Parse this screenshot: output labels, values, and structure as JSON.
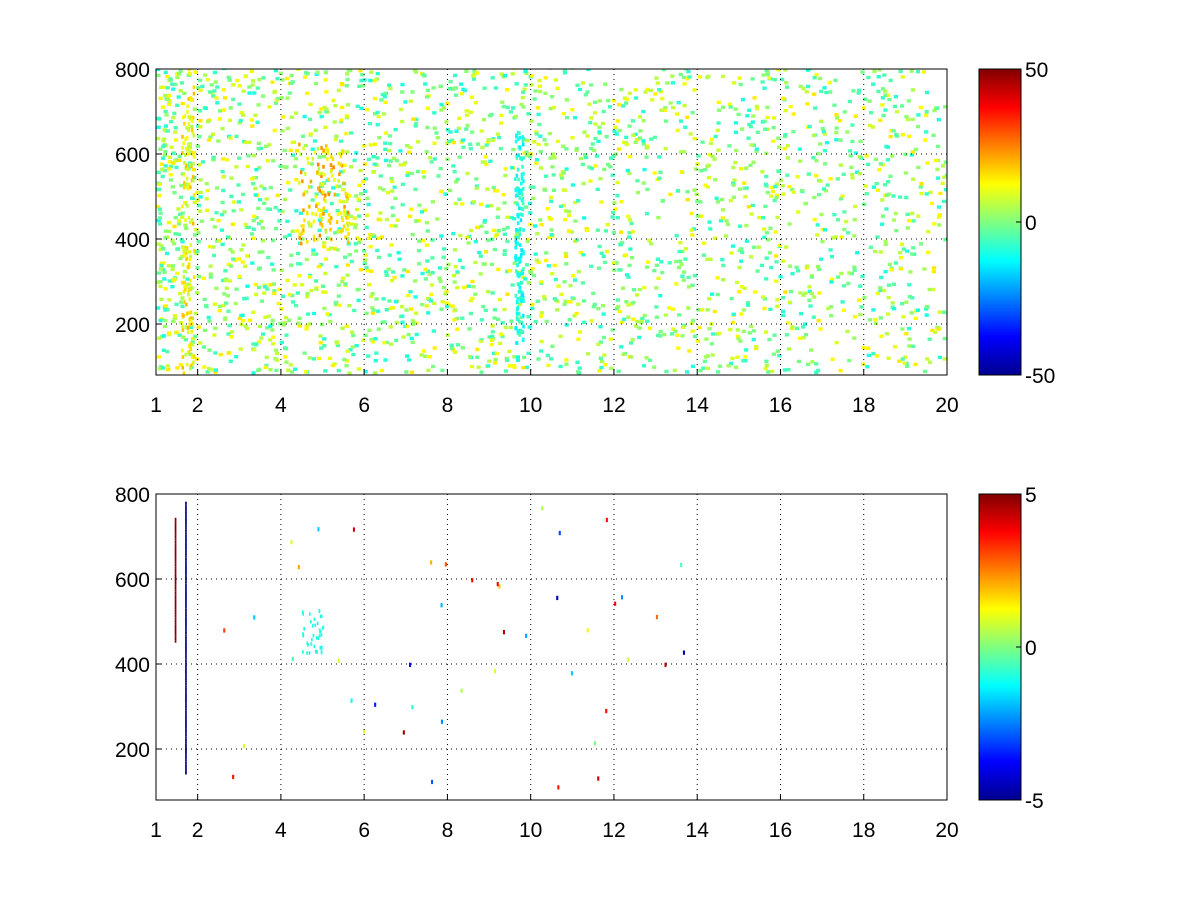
{
  "chart_data": [
    {
      "type": "heatmap",
      "title": "",
      "xlabel": "",
      "ylabel": "",
      "xlim": [
        1,
        20
      ],
      "ylim": [
        80,
        800
      ],
      "x_ticks": [
        "1",
        "2",
        "4",
        "6",
        "8",
        "10",
        "12",
        "14",
        "16",
        "18",
        "20"
      ],
      "y_ticks": [
        "200",
        "400",
        "600",
        "800"
      ],
      "grid": true,
      "colormap": "jet",
      "colorbar": {
        "range": [
          -50,
          50
        ],
        "ticks": [
          "50",
          "0",
          "-50"
        ]
      },
      "features": [
        {
          "label": "dense low-amplitude scatter over full y-range, densest near x 1-6, sparser toward x 20",
          "x_range": [
            1,
            20
          ],
          "y_range": [
            80,
            800
          ],
          "value_range": [
            -10,
            15
          ]
        },
        {
          "label": "strong positive vertical streak",
          "x_range": [
            1.6,
            1.9
          ],
          "y_range": [
            80,
            800
          ],
          "value_range": [
            5,
            20
          ]
        },
        {
          "label": "positive blob",
          "x_range": [
            4.4,
            5.6
          ],
          "y_range": [
            380,
            620
          ],
          "value_range": [
            5,
            25
          ]
        },
        {
          "label": "negative streak",
          "x_range": [
            9.6,
            9.8
          ],
          "y_range": [
            150,
            650
          ],
          "value_range": [
            -15,
            -5
          ]
        }
      ]
    },
    {
      "type": "heatmap",
      "title": "",
      "xlabel": "",
      "ylabel": "",
      "xlim": [
        1,
        20
      ],
      "ylim": [
        80,
        800
      ],
      "x_ticks": [
        "1",
        "2",
        "4",
        "6",
        "8",
        "10",
        "12",
        "14",
        "16",
        "18",
        "20"
      ],
      "y_ticks": [
        "200",
        "400",
        "600",
        "800"
      ],
      "grid": true,
      "colormap": "jet",
      "colorbar": {
        "range": [
          -5,
          5
        ],
        "ticks": [
          "5",
          "0",
          "-5"
        ]
      },
      "features": [
        {
          "label": "positive streak",
          "x": 1.45,
          "y_range": [
            450,
            740
          ],
          "value": 5
        },
        {
          "label": "strong negative streak",
          "x": 1.7,
          "y_range": [
            140,
            780
          ],
          "value": -5
        },
        {
          "label": "low-amplitude arc",
          "x_range": [
            4.5,
            5.0
          ],
          "y_range": [
            420,
            530
          ],
          "value": -1
        },
        {
          "label": "isolated points",
          "x_range": [
            2.5,
            14
          ],
          "y_range": [
            100,
            770
          ],
          "value_range": [
            -5,
            5
          ]
        }
      ]
    }
  ]
}
